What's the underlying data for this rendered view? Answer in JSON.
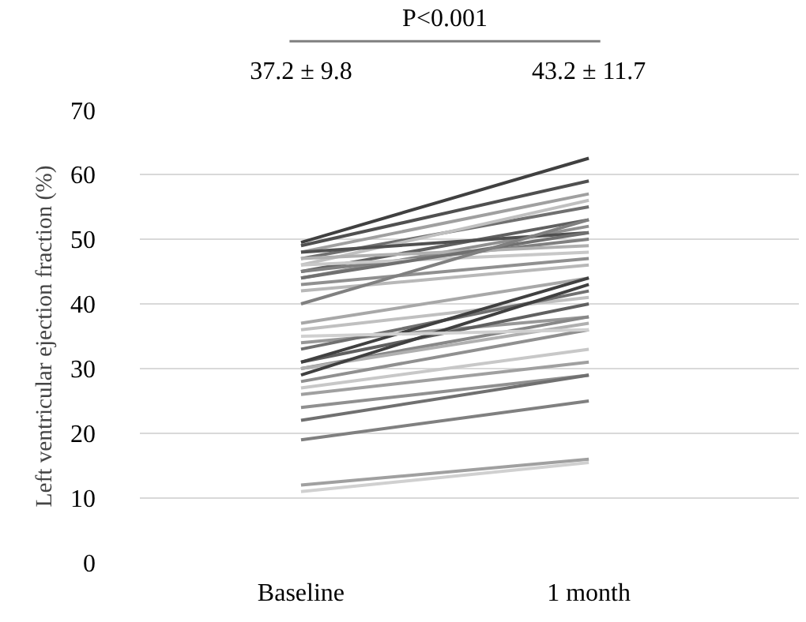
{
  "chart_data": {
    "type": "line",
    "ylabel": "Left ventricular ejection fraction (%)",
    "categories": [
      "Baseline",
      "1 month"
    ],
    "ylim": [
      0,
      70
    ],
    "yticks": [
      0,
      10,
      20,
      30,
      40,
      50,
      60,
      70
    ],
    "grid": "y",
    "marker": "none",
    "line_style": "solid",
    "annotations": [
      "P<0.001",
      "37.2 ± 9.8",
      "43.2 ± 11.7"
    ],
    "series": [
      {
        "color": "#404040",
        "values": [
          49.5,
          62.5
        ]
      },
      {
        "color": "#505050",
        "values": [
          49,
          59
        ]
      },
      {
        "color": "#a0a0a0",
        "values": [
          48,
          57
        ]
      },
      {
        "color": "#707070",
        "values": [
          47,
          55
        ]
      },
      {
        "color": "#c0c0c0",
        "values": [
          46,
          56
        ]
      },
      {
        "color": "#606060",
        "values": [
          45,
          53
        ]
      },
      {
        "color": "#909090",
        "values": [
          44,
          52
        ]
      },
      {
        "color": "#808080",
        "values": [
          45,
          50
        ]
      },
      {
        "color": "#b0b0b0",
        "values": [
          47,
          49
        ]
      },
      {
        "color": "#505050",
        "values": [
          48,
          51
        ]
      },
      {
        "color": "#c8c8c8",
        "values": [
          46,
          48
        ]
      },
      {
        "color": "#909090",
        "values": [
          43,
          47
        ]
      },
      {
        "color": "#707070",
        "values": [
          44,
          51
        ]
      },
      {
        "color": "#b8b8b8",
        "values": [
          42,
          46
        ]
      },
      {
        "color": "#808080",
        "values": [
          40,
          53
        ]
      },
      {
        "color": "#a8a8a8",
        "values": [
          37,
          44
        ]
      },
      {
        "color": "#c0c0c0",
        "values": [
          36,
          41
        ]
      },
      {
        "color": "#989898",
        "values": [
          34,
          38
        ]
      },
      {
        "color": "#707070",
        "values": [
          33,
          42
        ]
      },
      {
        "color": "#606060",
        "values": [
          31,
          40
        ]
      },
      {
        "color": "#404040",
        "values": [
          31,
          44
        ]
      },
      {
        "color": "#888888",
        "values": [
          30,
          38
        ]
      },
      {
        "color": "#b0b0b0",
        "values": [
          30,
          37
        ]
      },
      {
        "color": "#404040",
        "values": [
          29,
          43
        ]
      },
      {
        "color": "#909090",
        "values": [
          28,
          36
        ]
      },
      {
        "color": "#c8c8c8",
        "values": [
          27,
          33
        ]
      },
      {
        "color": "#a0a0a0",
        "values": [
          26,
          31
        ]
      },
      {
        "color": "#d0d0d0",
        "values": [
          35,
          36
        ]
      },
      {
        "color": "#909090",
        "values": [
          24,
          29
        ]
      },
      {
        "color": "#707070",
        "values": [
          22,
          29
        ]
      },
      {
        "color": "#808080",
        "values": [
          19,
          25
        ]
      },
      {
        "color": "#a0a0a0",
        "values": [
          12,
          16
        ]
      },
      {
        "color": "#d0d0d0",
        "values": [
          11,
          15.5
        ]
      }
    ]
  }
}
